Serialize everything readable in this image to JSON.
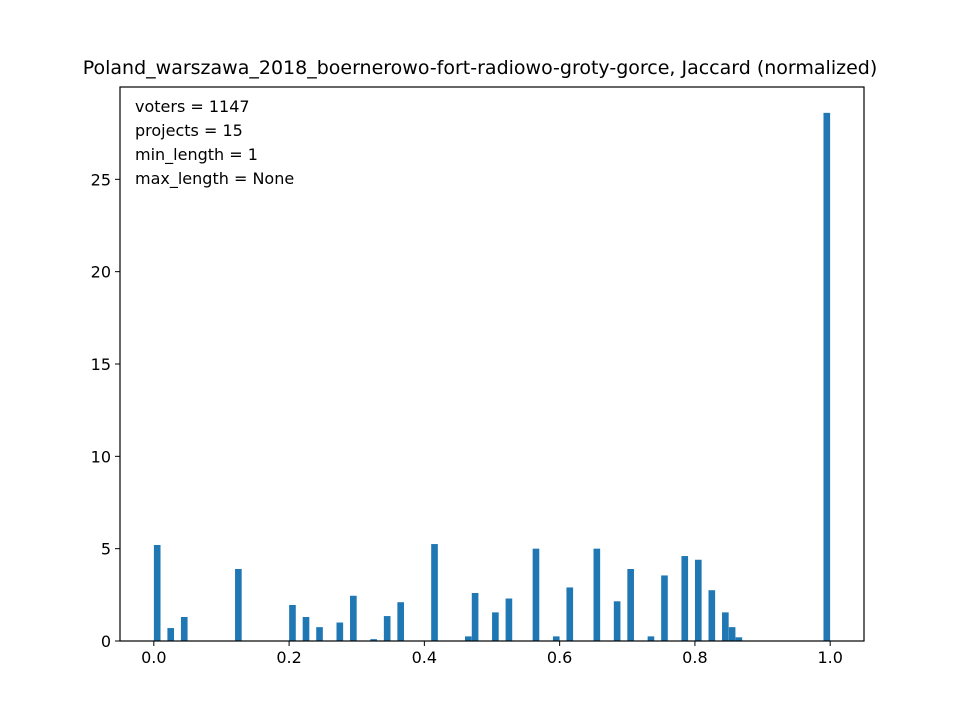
{
  "chart_data": {
    "type": "bar",
    "title": "Poland_warszawa_2018_boernerowo-fort-radiowo-groty-gorce, Jaccard (normalized)",
    "xlabel": "",
    "ylabel": "",
    "xlim": [
      -0.05,
      1.05
    ],
    "ylim": [
      0,
      30
    ],
    "x_ticks": [
      0.0,
      0.2,
      0.4,
      0.6,
      0.8,
      1.0
    ],
    "x_tick_labels": [
      "0.0",
      "0.2",
      "0.4",
      "0.6",
      "0.8",
      "1.0"
    ],
    "y_ticks": [
      0,
      5,
      10,
      15,
      20,
      25
    ],
    "y_tick_labels": [
      "0",
      "5",
      "10",
      "15",
      "20",
      "25"
    ],
    "bin_width": 0.01,
    "color": "#1f77b4",
    "grid": false,
    "annotations": [
      "voters = 1147",
      "projects = 15",
      "min_length = 1",
      "max_length = None"
    ],
    "bars": [
      {
        "x": 0.005,
        "y": 5.2
      },
      {
        "x": 0.025,
        "y": 0.7
      },
      {
        "x": 0.045,
        "y": 1.3
      },
      {
        "x": 0.125,
        "y": 3.9
      },
      {
        "x": 0.205,
        "y": 1.95
      },
      {
        "x": 0.225,
        "y": 1.3
      },
      {
        "x": 0.245,
        "y": 0.75
      },
      {
        "x": 0.275,
        "y": 1.0
      },
      {
        "x": 0.295,
        "y": 2.45
      },
      {
        "x": 0.325,
        "y": 0.1
      },
      {
        "x": 0.345,
        "y": 1.35
      },
      {
        "x": 0.365,
        "y": 2.1
      },
      {
        "x": 0.415,
        "y": 5.25
      },
      {
        "x": 0.465,
        "y": 0.25
      },
      {
        "x": 0.475,
        "y": 2.6
      },
      {
        "x": 0.505,
        "y": 1.55
      },
      {
        "x": 0.525,
        "y": 2.3
      },
      {
        "x": 0.565,
        "y": 5.0
      },
      {
        "x": 0.595,
        "y": 0.25
      },
      {
        "x": 0.615,
        "y": 2.9
      },
      {
        "x": 0.655,
        "y": 5.0
      },
      {
        "x": 0.685,
        "y": 2.15
      },
      {
        "x": 0.705,
        "y": 3.9
      },
      {
        "x": 0.735,
        "y": 0.25
      },
      {
        "x": 0.755,
        "y": 3.55
      },
      {
        "x": 0.785,
        "y": 4.6
      },
      {
        "x": 0.805,
        "y": 4.4
      },
      {
        "x": 0.825,
        "y": 2.75
      },
      {
        "x": 0.845,
        "y": 1.55
      },
      {
        "x": 0.855,
        "y": 0.75
      },
      {
        "x": 0.865,
        "y": 0.2
      },
      {
        "x": 0.995,
        "y": 28.6
      }
    ]
  }
}
